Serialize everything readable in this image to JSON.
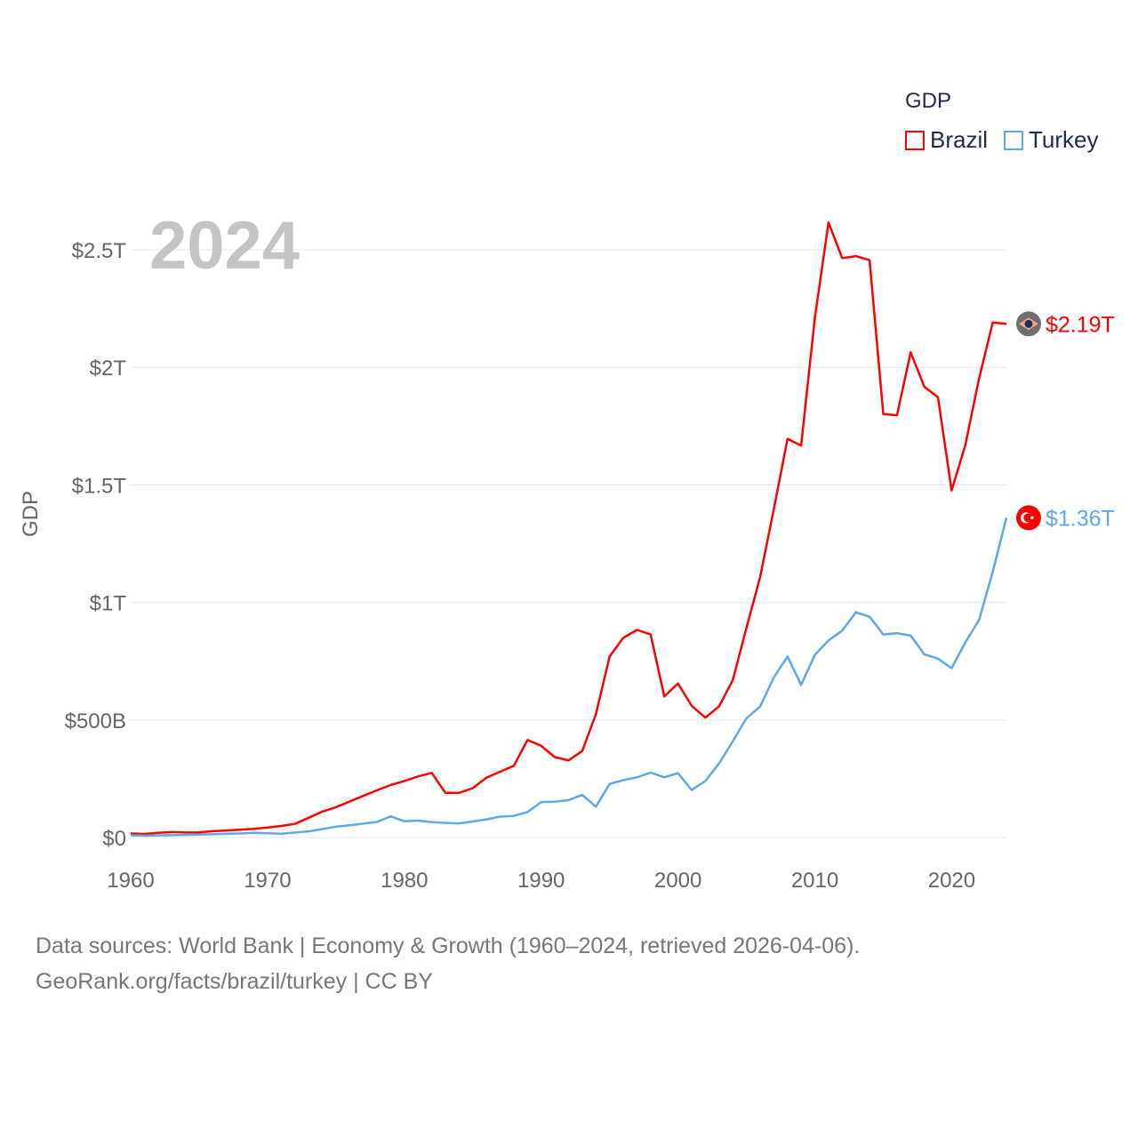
{
  "chart_data": {
    "type": "line",
    "title": "",
    "year_label": "2024",
    "ylabel": "GDP",
    "xlabel": "",
    "xlim": [
      1960,
      2024
    ],
    "ylim": [
      0,
      2.5
    ],
    "y_unit": "trillion USD",
    "y_ticks": [
      {
        "v": 0,
        "label": "$0"
      },
      {
        "v": 0.5,
        "label": "$500B"
      },
      {
        "v": 1,
        "label": "$1T"
      },
      {
        "v": 1.5,
        "label": "$1.5T"
      },
      {
        "v": 2,
        "label": "$2T"
      },
      {
        "v": 2.5,
        "label": "$2.5T"
      }
    ],
    "x_ticks": [
      1960,
      1970,
      1980,
      1990,
      2000,
      2010,
      2020
    ],
    "grid": true,
    "legend": {
      "title": "GDP",
      "placement": "top-right"
    },
    "series": [
      {
        "name": "Brazil",
        "color": "#ff0000",
        "end_label": "$2.19T",
        "icon": "brazil-flag-icon",
        "values": [
          0.017,
          0.015,
          0.02,
          0.023,
          0.021,
          0.022,
          0.027,
          0.03,
          0.033,
          0.037,
          0.042,
          0.049,
          0.058,
          0.084,
          0.11,
          0.129,
          0.153,
          0.177,
          0.201,
          0.223,
          0.24,
          0.26,
          0.275,
          0.19,
          0.19,
          0.21,
          0.255,
          0.28,
          0.305,
          0.415,
          0.39,
          0.342,
          0.328,
          0.368,
          0.525,
          0.77,
          0.85,
          0.883,
          0.864,
          0.6,
          0.655,
          0.56,
          0.51,
          0.558,
          0.669,
          0.892,
          1.108,
          1.397,
          1.696,
          1.667,
          2.209,
          2.616,
          2.465,
          2.473,
          2.456,
          1.802,
          1.796,
          2.064,
          1.917,
          1.873,
          1.476,
          1.67,
          1.952,
          2.191,
          2.185
        ]
      },
      {
        "name": "Turkey",
        "color": "#5ea8ec",
        "end_label": "$1.36T",
        "icon": "turkey-flag-icon",
        "values": [
          0.009,
          0.008,
          0.009,
          0.01,
          0.011,
          0.012,
          0.014,
          0.016,
          0.017,
          0.02,
          0.018,
          0.016,
          0.021,
          0.026,
          0.036,
          0.046,
          0.052,
          0.059,
          0.066,
          0.09,
          0.069,
          0.072,
          0.065,
          0.062,
          0.06,
          0.068,
          0.077,
          0.089,
          0.092,
          0.108,
          0.151,
          0.152,
          0.159,
          0.181,
          0.131,
          0.228,
          0.244,
          0.256,
          0.276,
          0.256,
          0.274,
          0.202,
          0.24,
          0.315,
          0.409,
          0.507,
          0.557,
          0.681,
          0.77,
          0.649,
          0.777,
          0.838,
          0.88,
          0.958,
          0.939,
          0.864,
          0.869,
          0.859,
          0.779,
          0.761,
          0.72,
          0.83,
          0.925,
          1.13,
          1.36
        ]
      }
    ]
  },
  "footer": {
    "line1": "Data sources: World Bank | Economy & Growth (1960–2024, retrieved 2026-04-06).",
    "line2": "GeoRank.org/facts/brazil/turkey | CC BY"
  }
}
